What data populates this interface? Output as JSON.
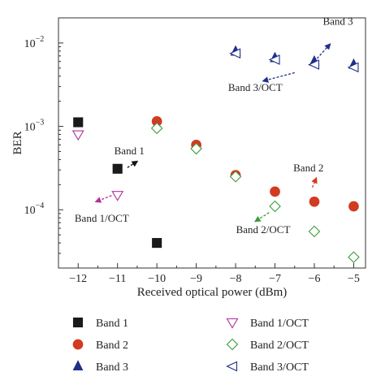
{
  "chart_data": {
    "type": "scatter",
    "xlabel": "Received optical power (dBm)",
    "ylabel": "BER",
    "x_ticks": [
      -12,
      -11,
      -10,
      -9,
      -8,
      -7,
      -6,
      -5
    ],
    "x_tick_labels": [
      "−12",
      "−11",
      "−10",
      "−9",
      "−8",
      "−7",
      "−6",
      "−5"
    ],
    "xlim": [
      -12.5,
      -4.7
    ],
    "y_scale": "log",
    "ylim": [
      2e-05,
      0.02
    ],
    "y_ticks": [
      {
        "value": 0.0001,
        "base": "10",
        "exp": "−4"
      },
      {
        "value": 0.001,
        "base": "10",
        "exp": "−3"
      },
      {
        "value": 0.01,
        "base": "10",
        "exp": "−2"
      }
    ],
    "grid": false,
    "series": [
      {
        "name": "Band 1",
        "marker": "square",
        "color": "#1a1a1a",
        "filled": true,
        "points": [
          {
            "x": -12,
            "y": 0.00112
          },
          {
            "x": -11,
            "y": 0.00031
          },
          {
            "x": -10,
            "y": 4e-05
          }
        ]
      },
      {
        "name": "Band 2",
        "marker": "circle",
        "color": "#d23a22",
        "filled": true,
        "points": [
          {
            "x": -10,
            "y": 0.00115
          },
          {
            "x": -9,
            "y": 0.0006
          },
          {
            "x": -8,
            "y": 0.00026
          },
          {
            "x": -7,
            "y": 0.000165
          },
          {
            "x": -6,
            "y": 0.000125
          },
          {
            "x": -5,
            "y": 0.00011
          }
        ]
      },
      {
        "name": "Band 3",
        "marker": "triangle-up",
        "color": "#1f2f8a",
        "filled": true,
        "points": [
          {
            "x": -8,
            "y": 0.0079
          },
          {
            "x": -7,
            "y": 0.0066
          },
          {
            "x": -6,
            "y": 0.006
          },
          {
            "x": -5,
            "y": 0.0055
          }
        ]
      },
      {
        "name": "Band 1/OCT",
        "marker": "triangle-down",
        "color": "#b0309a",
        "filled": false,
        "points": [
          {
            "x": -12,
            "y": 0.0008
          },
          {
            "x": -11,
            "y": 0.00015
          }
        ]
      },
      {
        "name": "Band 2/OCT",
        "marker": "diamond",
        "color": "#3a9a3a",
        "filled": false,
        "points": [
          {
            "x": -10,
            "y": 0.00095
          },
          {
            "x": -9,
            "y": 0.00054
          },
          {
            "x": -8,
            "y": 0.00025
          },
          {
            "x": -7,
            "y": 0.00011
          },
          {
            "x": -6,
            "y": 5.5e-05
          },
          {
            "x": -5,
            "y": 2.7e-05
          }
        ]
      },
      {
        "name": "Band 3/OCT",
        "marker": "triangle-left",
        "color": "#1f2f8a",
        "filled": false,
        "points": [
          {
            "x": -8,
            "y": 0.0075
          },
          {
            "x": -7,
            "y": 0.0063
          },
          {
            "x": -6,
            "y": 0.0055
          },
          {
            "x": -5,
            "y": 0.0051
          }
        ]
      }
    ],
    "annotations": [
      {
        "text": "Band 1",
        "color": "#111111",
        "text_at": {
          "x": -10.7,
          "y": 0.00046
        },
        "arrow_from": {
          "x": -10.75,
          "y": 0.00032
        },
        "arrow_to": {
          "x": -10.5,
          "y": 0.00038
        }
      },
      {
        "text": "Band 1/OCT",
        "color": "#b0309a",
        "text_at": {
          "x": -11.4,
          "y": 7.2e-05
        },
        "arrow_from": {
          "x": -11.15,
          "y": 0.000148
        },
        "arrow_to": {
          "x": -11.55,
          "y": 0.000125
        }
      },
      {
        "text": "Band 2",
        "color": "#d23a22",
        "text_at": {
          "x": -6.15,
          "y": 0.00029
        },
        "arrow_from": {
          "x": -6.05,
          "y": 0.000185
        },
        "arrow_to": {
          "x": -5.95,
          "y": 0.00024
        }
      },
      {
        "text": "Band 2/OCT",
        "color": "#3a9a3a",
        "text_at": {
          "x": -7.3,
          "y": 5.25e-05
        },
        "arrow_from": {
          "x": -7.15,
          "y": 9.25e-05
        },
        "arrow_to": {
          "x": -7.5,
          "y": 7.25e-05
        }
      },
      {
        "text": "Band 3",
        "color": "#1f2f8a",
        "text_at": {
          "x": -5.4,
          "y": 0.0165
        },
        "arrow_from": {
          "x": -6.0,
          "y": 0.006
        },
        "arrow_to": {
          "x": -5.6,
          "y": 0.0097
        }
      },
      {
        "text": "Band 3/OCT",
        "color": "#1f2f8a",
        "text_at": {
          "x": -7.5,
          "y": 0.00265
        },
        "arrow_from": {
          "x": -6.5,
          "y": 0.0044
        },
        "arrow_to": {
          "x": -7.3,
          "y": 0.0035
        }
      }
    ],
    "legend": {
      "placement": "bottom",
      "columns": 2,
      "order": [
        "Band 1",
        "Band 1/OCT",
        "Band 2",
        "Band 2/OCT",
        "Band 3",
        "Band 3/OCT"
      ]
    }
  }
}
